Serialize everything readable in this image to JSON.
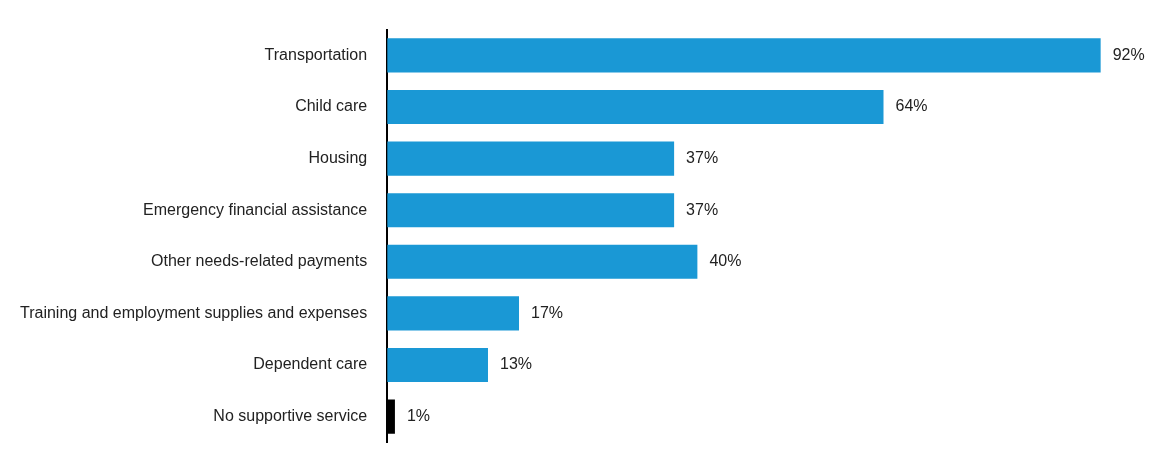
{
  "chart_data": {
    "type": "bar",
    "orientation": "horizontal",
    "categories": [
      "Transportation",
      "Child care",
      "Housing",
      "Emergency financial assistance",
      "Other needs-related payments",
      "Training and employment supplies and expenses",
      "Dependent care",
      "No supportive service"
    ],
    "values": [
      92,
      64,
      37,
      37,
      40,
      17,
      13,
      1
    ],
    "colors": [
      "#1a98d5",
      "#1a98d5",
      "#1a98d5",
      "#1a98d5",
      "#1a98d5",
      "#1a98d5",
      "#1a98d5",
      "#000000"
    ],
    "value_labels": [
      "92%",
      "64%",
      "37%",
      "37%",
      "40%",
      "17%",
      "13%",
      "1%"
    ],
    "legend": false
  }
}
